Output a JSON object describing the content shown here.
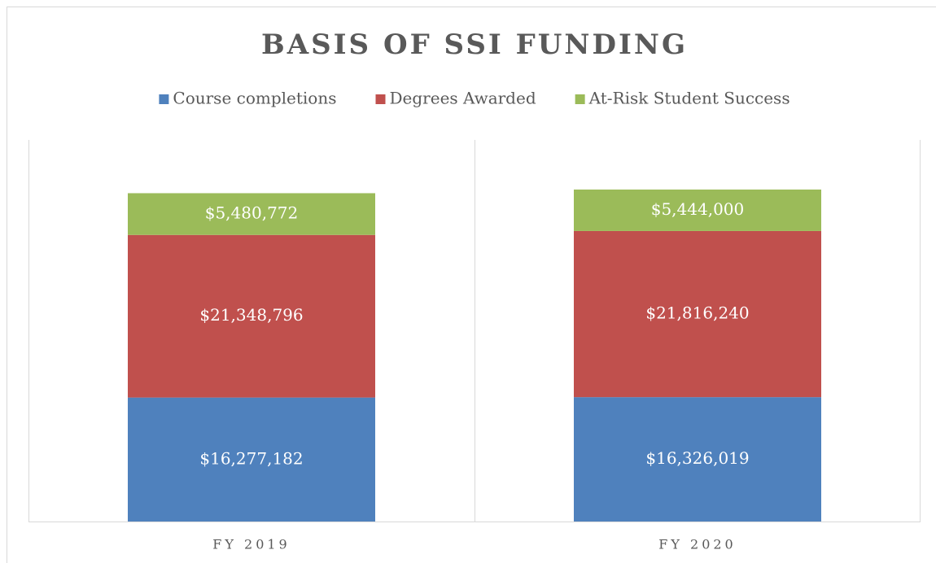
{
  "chart_data": {
    "type": "stacked_bar",
    "title": "BASIS OF SSI FUNDING",
    "categories": [
      "FY 2019",
      "FY 2020"
    ],
    "series": [
      {
        "name": "Course completions",
        "color": "#4f81bd",
        "values": [
          16277182,
          16326019
        ],
        "value_labels": [
          "$16,277,182",
          "$16,326,019"
        ]
      },
      {
        "name": "Degrees Awarded",
        "color": "#c0504d",
        "values": [
          21348796,
          21816240
        ],
        "value_labels": [
          "$21,348,796",
          "$21,816,240"
        ]
      },
      {
        "name": "At-Risk Student Success",
        "color": "#9bbb59",
        "values": [
          5480772,
          5444000
        ],
        "value_labels": [
          "$5,480,772",
          "$5,444,000"
        ]
      }
    ],
    "legend": "top"
  }
}
